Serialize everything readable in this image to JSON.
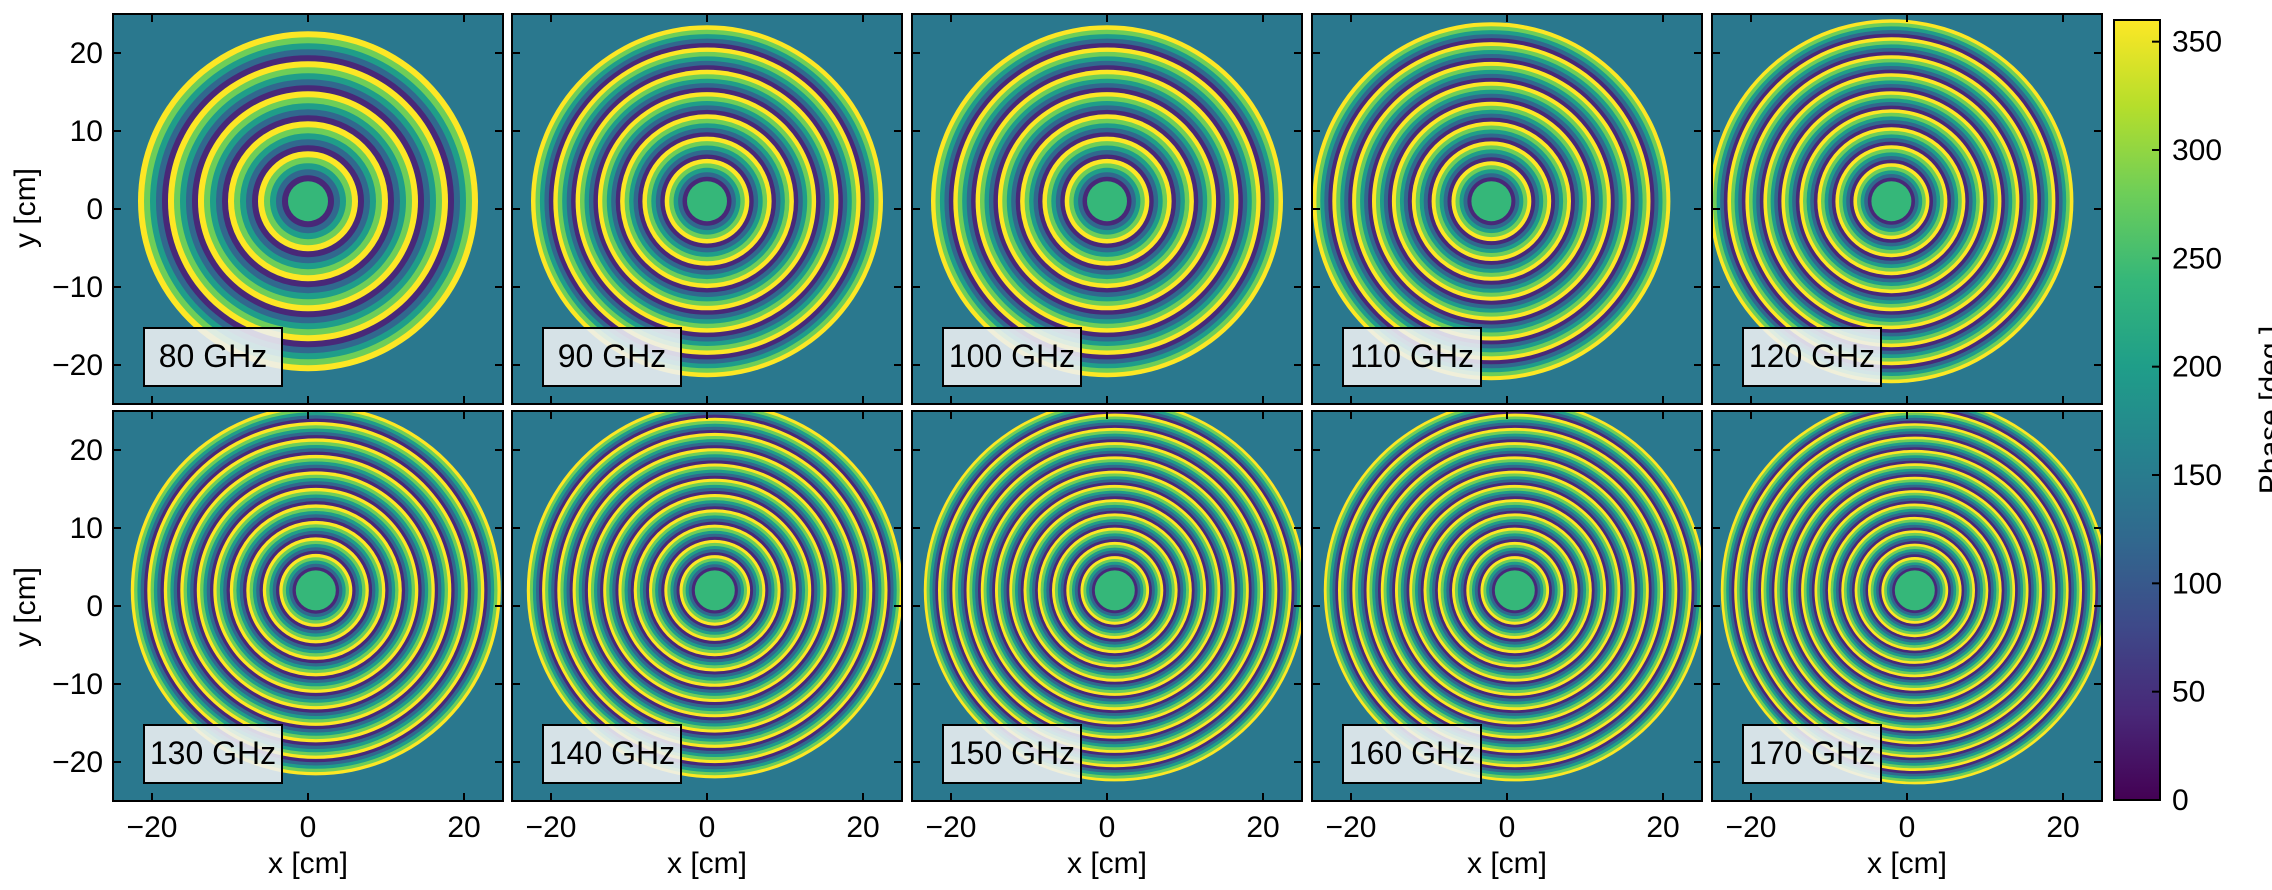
{
  "chart_data": {
    "type": "heatmap",
    "title": "",
    "layout": "2 rows x 5 columns",
    "xlabel": "x [cm]",
    "ylabel": "y [cm]",
    "xlim": [
      -25,
      25
    ],
    "ylim": [
      -25,
      25
    ],
    "xticks": [
      -20,
      0,
      20
    ],
    "yticks": [
      -20,
      -10,
      0,
      10,
      20
    ],
    "xtick_labels": [
      "−20",
      "0",
      "20"
    ],
    "ytick_labels": [
      "−20",
      "−10",
      "0",
      "10",
      "20"
    ],
    "colormap": "viridis",
    "colorbar": {
      "label": "Phase [deg.]",
      "range": [
        0,
        360
      ],
      "ticks": [
        0,
        50,
        100,
        150,
        200,
        250,
        300,
        350
      ],
      "tick_labels": [
        "0",
        "50",
        "100",
        "150",
        "200",
        "250",
        "300",
        "350"
      ]
    },
    "panels": [
      {
        "label": "80 GHz",
        "frequency_ghz": 80,
        "center_cm": [
          0,
          1
        ],
        "rings": 5
      },
      {
        "label": "90 GHz",
        "frequency_ghz": 90,
        "center_cm": [
          0,
          1
        ],
        "rings": 7
      },
      {
        "label": "100 GHz",
        "frequency_ghz": 100,
        "center_cm": [
          0,
          1
        ],
        "rings": 7
      },
      {
        "label": "110 GHz",
        "frequency_ghz": 110,
        "center_cm": [
          -2,
          1
        ],
        "rings": 8
      },
      {
        "label": "120 GHz",
        "frequency_ghz": 120,
        "center_cm": [
          -2,
          1
        ],
        "rings": 9
      },
      {
        "label": "130 GHz",
        "frequency_ghz": 130,
        "center_cm": [
          1,
          2
        ],
        "rings": 10
      },
      {
        "label": "140 GHz",
        "frequency_ghz": 140,
        "center_cm": [
          1,
          2
        ],
        "rings": 11
      },
      {
        "label": "150 GHz",
        "frequency_ghz": 150,
        "center_cm": [
          1,
          2
        ],
        "rings": 12
      },
      {
        "label": "160 GHz",
        "frequency_ghz": 160,
        "center_cm": [
          1,
          2
        ],
        "rings": 12
      },
      {
        "label": "170 GHz",
        "frequency_ghz": 170,
        "center_cm": [
          1,
          2
        ],
        "rings": 13
      }
    ]
  },
  "colors": {
    "viridis": [
      "#440154",
      "#482878",
      "#3e4989",
      "#31688e",
      "#26828e",
      "#1f9e89",
      "#35b779",
      "#6ece58",
      "#b5de2b",
      "#fde725"
    ],
    "background_phase": "#2a788e",
    "label_box": "#eef0f4"
  }
}
